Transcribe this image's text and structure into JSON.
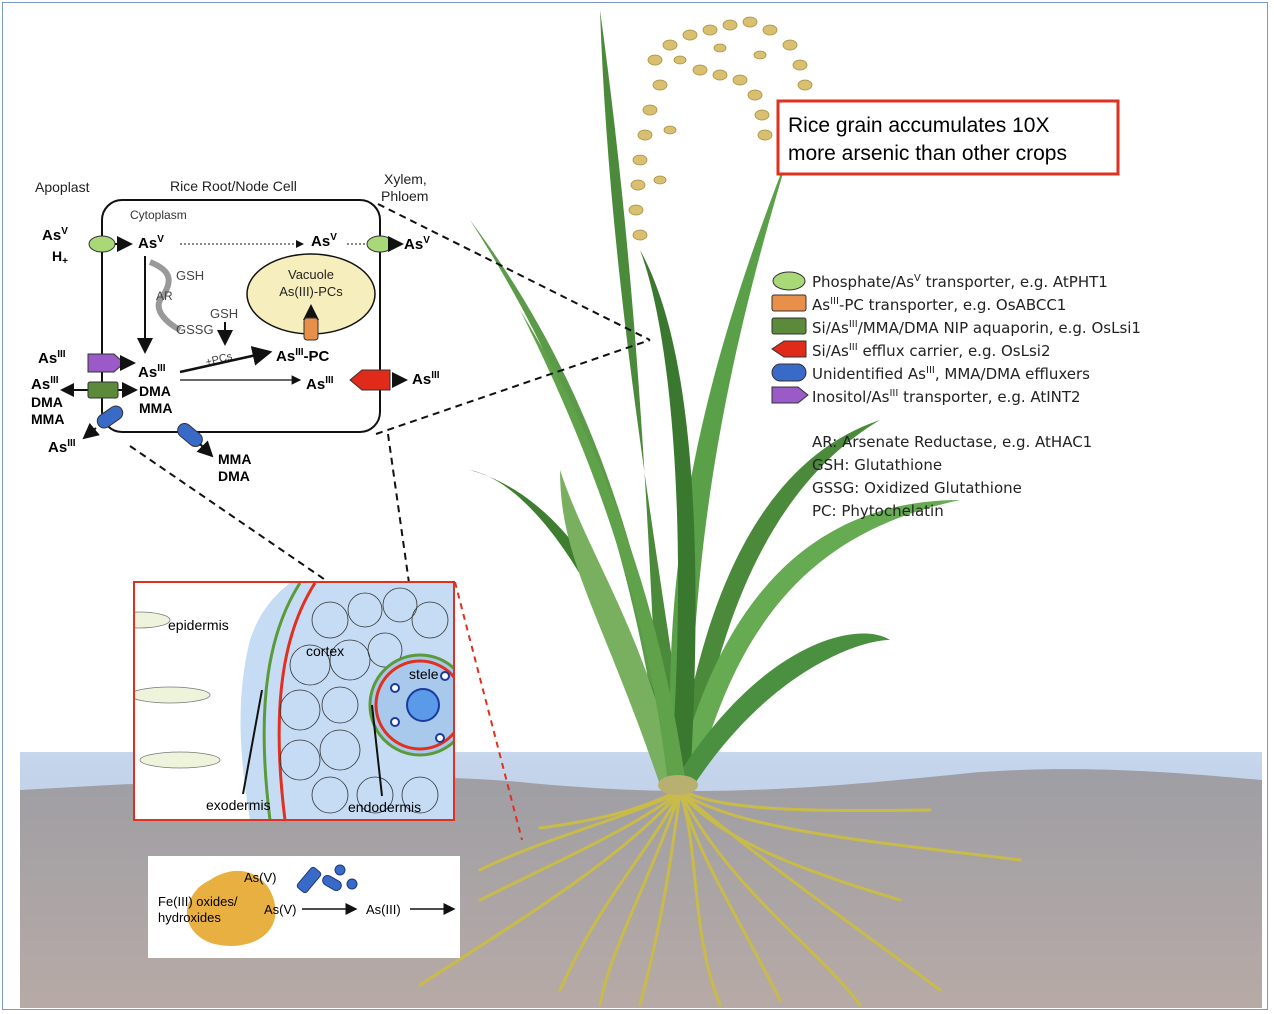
{
  "callout": {
    "line1": "Rice grain accumulates 10X",
    "line2": "more arsenic than other crops",
    "border_color": "#e03020"
  },
  "cell": {
    "apoplast": "Apoplast",
    "title": "Rice Root/Node Cell",
    "xylem_line1": "Xylem,",
    "xylem_line2": "Phloem",
    "cytoplasm": "Cytoplasm",
    "vacuole_line1": "Vacuole",
    "vacuole_line2": "As(III)-PCs",
    "as": "As",
    "sup_v": "V",
    "sup_iii": "III",
    "h_plus": "H",
    "plus": "+",
    "gsh": "GSH",
    "ar": "AR",
    "gssg": "GSSG",
    "gsh2": "GSH",
    "pcs": "+PCs",
    "pc_suffix": "-PC",
    "dma": "DMA",
    "mma": "MMA"
  },
  "root_section": {
    "epidermis": "epidermis",
    "cortex": "cortex",
    "stele": "stele",
    "exodermis": "exodermis",
    "endodermis": "endodermis"
  },
  "soil_box": {
    "fe_line1": "Fe(III) oxides/",
    "fe_line2": "hydroxides",
    "as_v_top": "As(V)",
    "as_v": "As(V)",
    "as_iii": "As(III)"
  },
  "legend": [
    {
      "icon": "phosphate-transporter-icon",
      "color": "#a8d878",
      "pre": "Phosphate/As",
      "sup": "V",
      "post": " transporter, e.g. AtPHT1"
    },
    {
      "icon": "as-pc-transporter-icon",
      "color": "#e8904a",
      "pre": "As",
      "sup": "III",
      "post": "-PC transporter, e.g. OsABCC1"
    },
    {
      "icon": "nip-aquaporin-icon",
      "color": "#5a8a3a",
      "pre": "Si/As",
      "sup": "III",
      "post": "/MMA/DMA NIP aquaporin, e.g. OsLsi1"
    },
    {
      "icon": "efflux-carrier-icon",
      "color": "#e02a1a",
      "pre": "Si/As",
      "sup": "III",
      "post": " efflux carrier, e.g. OsLsi2"
    },
    {
      "icon": "unidentified-effluxer-icon",
      "color": "#3a6ac8",
      "pre": "Unidentified As",
      "sup": "III",
      "post": ", MMA/DMA effluxers"
    },
    {
      "icon": "inositol-transporter-icon",
      "color": "#9a5ac8",
      "pre": "Inositol/As",
      "sup": "III",
      "post": " transporter, e.g. AtINT2"
    }
  ],
  "abbreviations": [
    "AR: Arsenate Reductase, e.g. AtHAC1",
    "GSH: Glutathione",
    "GSSG: Oxidized Glutathione",
    "PC: Phytochelatin"
  ]
}
